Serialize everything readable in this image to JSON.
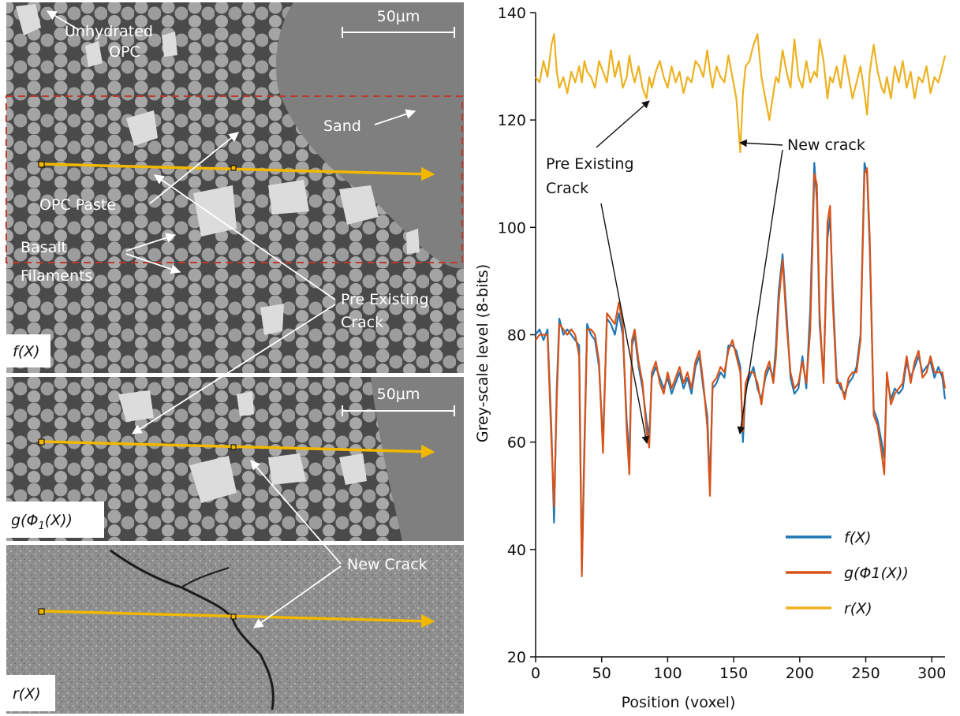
{
  "images": {
    "panels": [
      {
        "tag": "f(X)"
      },
      {
        "tag": "g(Φ",
        "tag_sub": "1",
        "tag_end": "(X))"
      },
      {
        "tag": "r(X)"
      }
    ],
    "scale_bar": "50μm",
    "labels": {
      "unhydrated_1": "Unhydrated",
      "unhydrated_2": "OPC",
      "sand": "Sand",
      "opc_paste": "OPC Paste",
      "basalt_1": "Basalt",
      "basalt_2": "Filaments",
      "pre_existing_1": "Pre Existing",
      "pre_existing_2": "Crack",
      "new_crack": "New Crack"
    },
    "colors": {
      "profile_line": "#f2b800",
      "roi_box": "#c0392b",
      "sand_grey": "#7d7d7d",
      "paste_grey": "#5a5a5a",
      "filament_grey": "#a5a5a5"
    }
  },
  "chart_data": {
    "type": "line",
    "xlabel": "Position (voxel)",
    "ylabel": "Grey-scale level (8-bits)",
    "xlim": [
      0,
      310
    ],
    "ylim": [
      20,
      140
    ],
    "xticks": [
      0,
      50,
      100,
      150,
      200,
      250,
      300
    ],
    "yticks": [
      20,
      40,
      60,
      80,
      100,
      120,
      140
    ],
    "legend_position": "lower-right",
    "grid": false,
    "series": [
      {
        "name": "f(X)",
        "color": "#1f77b4",
        "x": [
          0,
          3,
          6,
          9,
          12,
          14,
          16,
          18,
          21,
          24,
          27,
          30,
          33,
          35,
          37,
          39,
          42,
          45,
          48,
          51,
          54,
          57,
          60,
          63,
          66,
          69,
          71,
          73,
          75,
          78,
          81,
          84,
          86,
          88,
          91,
          94,
          97,
          100,
          103,
          106,
          109,
          112,
          115,
          118,
          121,
          124,
          127,
          130,
          132,
          134,
          137,
          140,
          143,
          146,
          149,
          152,
          155,
          157,
          159,
          162,
          165,
          168,
          171,
          174,
          177,
          180,
          182,
          184,
          187,
          190,
          193,
          196,
          199,
          202,
          205,
          208,
          211,
          213,
          215,
          218,
          221,
          223,
          225,
          228,
          231,
          234,
          237,
          240,
          243,
          246,
          249,
          251,
          253,
          256,
          259,
          262,
          264,
          266,
          269,
          272,
          275,
          278,
          281,
          284,
          287,
          290,
          293,
          296,
          299,
          302,
          305,
          308,
          310
        ],
        "y": [
          80,
          81,
          79,
          81,
          62,
          45,
          70,
          83,
          80,
          81,
          80,
          79,
          78,
          36,
          60,
          82,
          80,
          79,
          74,
          60,
          83,
          82,
          80,
          84,
          80,
          64,
          57,
          78,
          80,
          74,
          70,
          64,
          61,
          72,
          74,
          72,
          70,
          72,
          69,
          71,
          73,
          70,
          72,
          69,
          74,
          76,
          70,
          65,
          52,
          70,
          71,
          73,
          72,
          78,
          78,
          77,
          74,
          60,
          70,
          72,
          74,
          70,
          68,
          72,
          74,
          72,
          78,
          88,
          95,
          84,
          72,
          69,
          70,
          76,
          70,
          85,
          112,
          105,
          82,
          72,
          98,
          102,
          88,
          72,
          70,
          69,
          71,
          72,
          74,
          80,
          112,
          110,
          96,
          66,
          64,
          60,
          57,
          72,
          68,
          70,
          69,
          70,
          75,
          72,
          74,
          76,
          73,
          74,
          75,
          72,
          74,
          72,
          68
        ]
      },
      {
        "name": "g(Φ1(X))",
        "color": "#d95319",
        "x": [
          0,
          3,
          6,
          9,
          12,
          14,
          16,
          18,
          21,
          24,
          27,
          30,
          33,
          35,
          37,
          39,
          42,
          45,
          48,
          51,
          54,
          57,
          60,
          63,
          66,
          69,
          71,
          73,
          75,
          78,
          81,
          84,
          86,
          88,
          91,
          94,
          97,
          100,
          103,
          106,
          109,
          112,
          115,
          118,
          121,
          124,
          127,
          130,
          132,
          134,
          137,
          140,
          143,
          146,
          149,
          152,
          155,
          157,
          159,
          162,
          165,
          168,
          171,
          174,
          177,
          180,
          182,
          184,
          187,
          190,
          193,
          196,
          199,
          202,
          205,
          208,
          211,
          213,
          215,
          218,
          221,
          223,
          225,
          228,
          231,
          234,
          237,
          240,
          243,
          246,
          249,
          251,
          253,
          256,
          259,
          262,
          264,
          266,
          269,
          272,
          275,
          278,
          281,
          284,
          287,
          290,
          293,
          296,
          299,
          302,
          305,
          308,
          310
        ],
        "y": [
          79,
          80,
          80,
          80,
          60,
          48,
          68,
          82,
          81,
          80,
          81,
          80,
          76,
          35,
          58,
          81,
          81,
          80,
          75,
          58,
          84,
          83,
          82,
          86,
          82,
          62,
          54,
          79,
          81,
          75,
          71,
          62,
          59,
          73,
          75,
          71,
          69,
          73,
          70,
          72,
          74,
          71,
          73,
          70,
          75,
          77,
          71,
          63,
          50,
          71,
          72,
          74,
          73,
          77,
          79,
          76,
          73,
          62,
          71,
          73,
          73,
          71,
          67,
          73,
          75,
          71,
          76,
          86,
          94,
          82,
          73,
          70,
          71,
          75,
          71,
          81,
          110,
          108,
          84,
          71,
          101,
          104,
          86,
          71,
          71,
          68,
          72,
          73,
          73,
          79,
          110,
          111,
          98,
          65,
          63,
          58,
          54,
          73,
          67,
          69,
          70,
          71,
          76,
          71,
          75,
          77,
          72,
          73,
          76,
          73,
          73,
          73,
          70
        ]
      },
      {
        "name": "r(X)",
        "color": "#edb120",
        "x": [
          0,
          3,
          6,
          9,
          12,
          14,
          16,
          18,
          21,
          24,
          27,
          30,
          33,
          35,
          37,
          39,
          42,
          45,
          48,
          51,
          54,
          57,
          60,
          63,
          66,
          69,
          71,
          73,
          75,
          78,
          81,
          84,
          86,
          88,
          91,
          94,
          97,
          100,
          103,
          106,
          109,
          112,
          115,
          118,
          121,
          124,
          127,
          130,
          132,
          134,
          137,
          140,
          143,
          146,
          149,
          152,
          155,
          157,
          159,
          162,
          165,
          168,
          171,
          174,
          177,
          180,
          182,
          184,
          187,
          190,
          193,
          196,
          199,
          202,
          205,
          208,
          211,
          213,
          215,
          218,
          221,
          223,
          225,
          228,
          231,
          234,
          237,
          240,
          243,
          246,
          249,
          251,
          253,
          256,
          259,
          262,
          264,
          266,
          269,
          272,
          275,
          278,
          281,
          284,
          287,
          290,
          293,
          296,
          299,
          302,
          305,
          308,
          310
        ],
        "y": [
          128,
          127,
          131,
          128,
          134,
          136,
          129,
          126,
          128,
          125,
          129,
          127,
          130,
          127,
          131,
          129,
          128,
          126,
          131,
          129,
          127,
          133,
          128,
          131,
          126,
          128,
          132,
          129,
          127,
          130,
          126,
          124,
          128,
          126,
          129,
          131,
          128,
          126,
          130,
          127,
          129,
          125,
          128,
          127,
          131,
          130,
          128,
          133,
          129,
          126,
          130,
          128,
          127,
          132,
          128,
          124,
          114,
          125,
          130,
          131,
          134,
          136,
          128,
          124,
          120,
          125,
          128,
          127,
          133,
          129,
          126,
          135,
          128,
          126,
          131,
          127,
          129,
          128,
          135,
          131,
          124,
          128,
          127,
          130,
          126,
          132,
          128,
          124,
          127,
          130,
          125,
          121,
          129,
          134,
          129,
          126,
          125,
          128,
          124,
          130,
          127,
          131,
          126,
          129,
          124,
          128,
          127,
          130,
          125,
          128,
          127,
          130,
          132
        ]
      }
    ],
    "annotations": [
      {
        "text_1": "Pre Existing",
        "text_2": "Crack"
      },
      {
        "text": "New crack"
      }
    ]
  }
}
